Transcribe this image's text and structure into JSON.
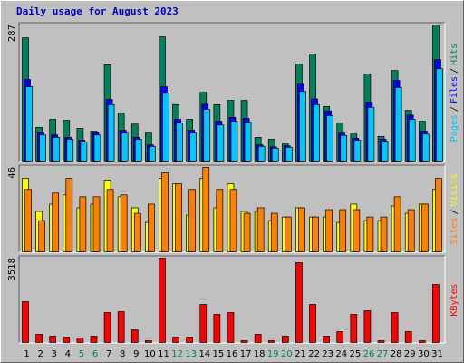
{
  "chart_data": [
    {
      "type": "bar",
      "title": "Daily usage for August 2023",
      "ylim": [
        0,
        287
      ],
      "yticks": [
        287
      ],
      "legend_separator": "/",
      "series": [
        {
          "name": "Hits",
          "color": "#00805c",
          "values": [
            260,
            71,
            88,
            86,
            69,
            63,
            203,
            101,
            78,
            59,
            262,
            119,
            88,
            145,
            119,
            128,
            128,
            50,
            46,
            36,
            205,
            226,
            115,
            80,
            57,
            184,
            52,
            191,
            107,
            84,
            287
          ]
        },
        {
          "name": "Files",
          "color": "#0000ff",
          "values": [
            172,
            60,
            55,
            50,
            44,
            60,
            130,
            65,
            50,
            34,
            157,
            88,
            65,
            120,
            84,
            92,
            90,
            34,
            30,
            32,
            162,
            131,
            106,
            59,
            48,
            124,
            46,
            170,
            97,
            63,
            214
          ]
        },
        {
          "name": "Pages",
          "color": "#00c8ff",
          "values": [
            157,
            55,
            50,
            46,
            40,
            55,
            119,
            59,
            46,
            31,
            143,
            80,
            59,
            109,
            76,
            84,
            82,
            31,
            27,
            29,
            147,
            119,
            96,
            54,
            44,
            113,
            42,
            155,
            88,
            57,
            195
          ]
        }
      ]
    },
    {
      "type": "bar",
      "ylim": [
        0,
        46
      ],
      "yticks": [
        46
      ],
      "legend_separator": "/",
      "series": [
        {
          "name": "Visits",
          "color": "#ffff00",
          "values": [
            40,
            22,
            26,
            31,
            24,
            26,
            39,
            30,
            24,
            16,
            40,
            37,
            20,
            40,
            24,
            37,
            22,
            22,
            17,
            19,
            24,
            19,
            19,
            16,
            26,
            17,
            17,
            25,
            21,
            26,
            34
          ]
        },
        {
          "name": "Sites",
          "color": "#ff8000",
          "values": [
            34,
            17,
            32,
            40,
            30,
            30,
            34,
            31,
            21,
            26,
            43,
            37,
            34,
            46,
            34,
            34,
            21,
            24,
            21,
            19,
            24,
            19,
            23,
            23,
            23,
            19,
            19,
            30,
            23,
            26,
            40
          ]
        }
      ]
    },
    {
      "type": "bar",
      "ylim": [
        0,
        3518
      ],
      "yticks": [
        3518
      ],
      "legend_separator": "/",
      "categories": [
        "1",
        "2",
        "3",
        "4",
        "5",
        "6",
        "7",
        "8",
        "9",
        "10",
        "11",
        "12",
        "13",
        "14",
        "15",
        "16",
        "17",
        "18",
        "19",
        "20",
        "21",
        "22",
        "23",
        "24",
        "25",
        "26",
        "27",
        "28",
        "29",
        "30",
        "31"
      ],
      "category_colors": [
        "#000000",
        "#000000",
        "#000000",
        "#000000",
        "#008060",
        "#008060",
        "#000000",
        "#000000",
        "#000000",
        "#000000",
        "#000000",
        "#008060",
        "#008060",
        "#000000",
        "#000000",
        "#000000",
        "#000000",
        "#000000",
        "#008060",
        "#008060",
        "#000000",
        "#000000",
        "#000000",
        "#000000",
        "#000000",
        "#008060",
        "#008060",
        "#000000",
        "#000000",
        "#000000",
        "#000000"
      ],
      "series": [
        {
          "name": "KBytes",
          "color": "#ff0000",
          "values": [
            1701,
            340,
            265,
            227,
            189,
            265,
            1248,
            1285,
            529,
            76,
            3518,
            227,
            227,
            1588,
            1172,
            1248,
            76,
            340,
            76,
            265,
            3329,
            1588,
            265,
            454,
            1172,
            1324,
            76,
            1248,
            454,
            76,
            2420
          ]
        }
      ]
    }
  ]
}
